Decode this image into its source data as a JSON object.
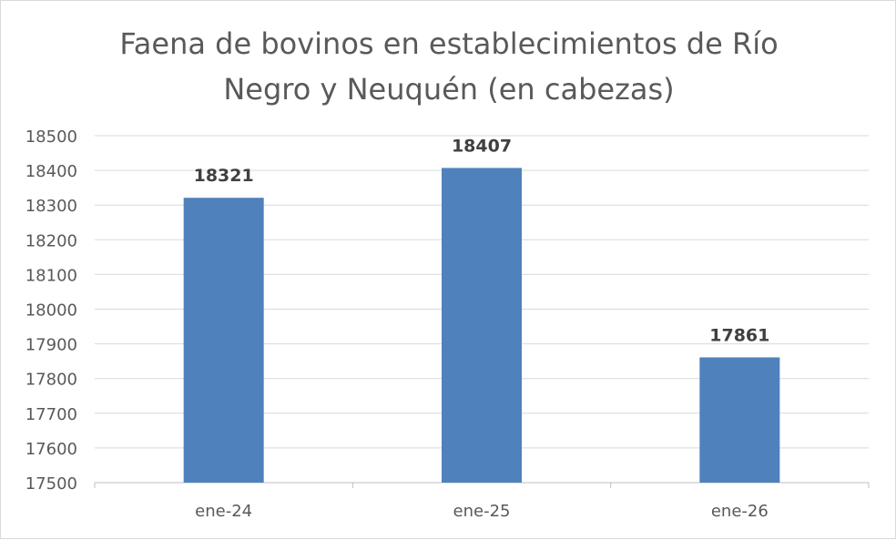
{
  "chart_data": {
    "type": "bar",
    "title_lines": [
      "Faena de bovinos en establecimientos de Río",
      "Negro y Neuquén (en cabezas)"
    ],
    "categories": [
      "ene-24",
      "ene-25",
      "ene-26"
    ],
    "values": [
      18321,
      18407,
      17861
    ],
    "data_labels": [
      "18321",
      "18407",
      "17861"
    ],
    "y_ticks": [
      "17500",
      "17600",
      "17700",
      "17800",
      "17900",
      "18000",
      "18100",
      "18200",
      "18300",
      "18400",
      "18500"
    ],
    "ylim": [
      17500,
      18500
    ],
    "grid": true,
    "legend": "none",
    "colors": {
      "bar": "#4f81bd",
      "grid": "#d9d9d9",
      "axis": "#bfbfbf",
      "text": "#595959",
      "label": "#404040"
    }
  }
}
